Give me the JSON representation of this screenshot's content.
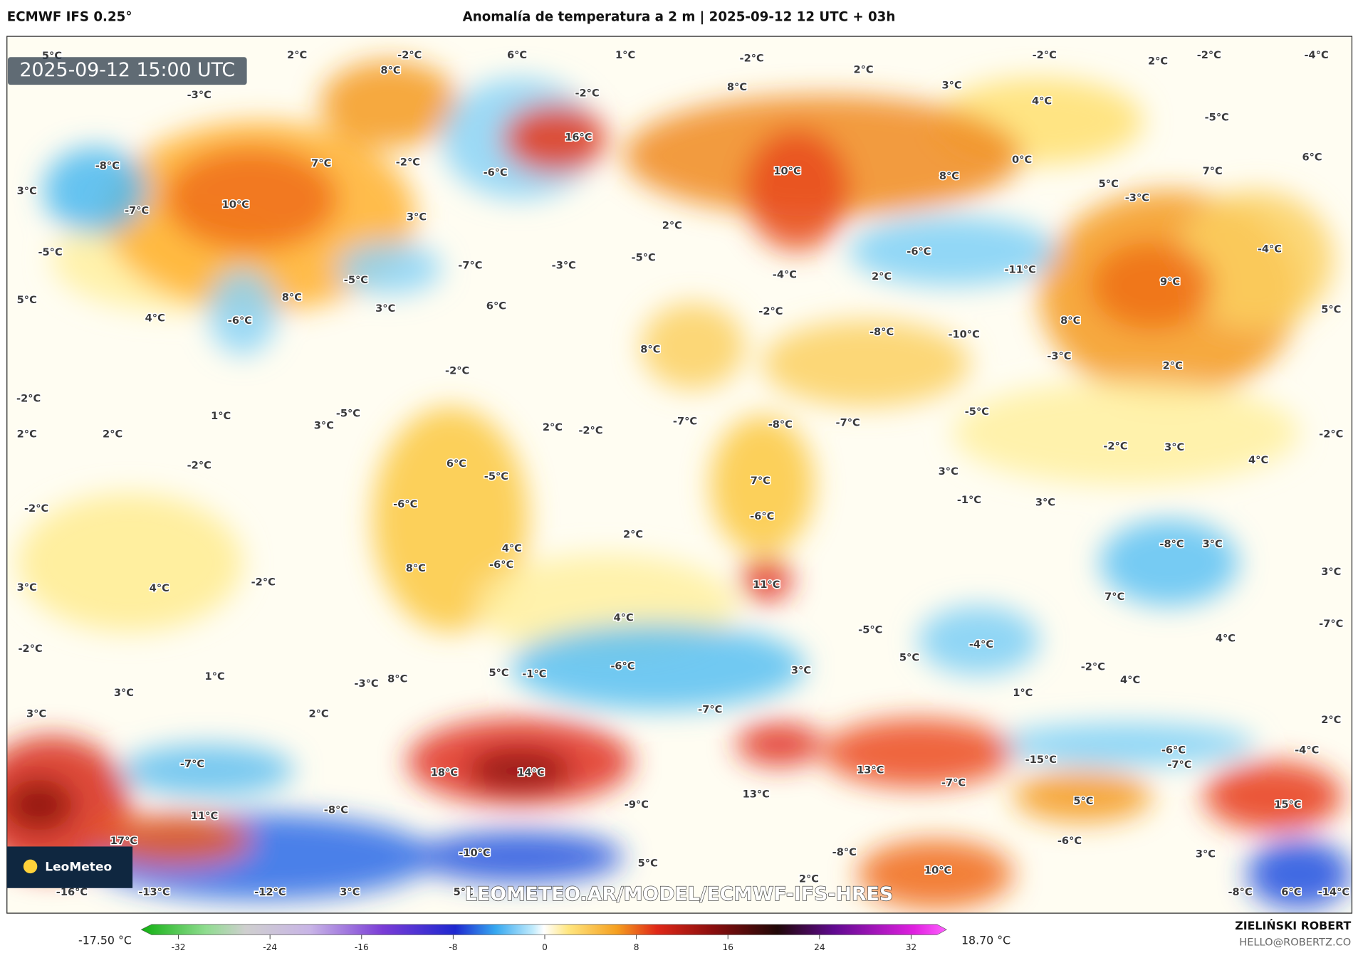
{
  "header": {
    "model": "ECMWF IFS 0.25°",
    "title": "Anomalía de temperatura a 2 m | 2025-09-12 12 UTC + 03h"
  },
  "map": {
    "timestamp": "2025-09-12 15:00 UTC",
    "logo": "LeoMeteo",
    "watermark": "LEOMETEO.AR/MODEL/ECMWF-IFS-HRES",
    "labels": [
      "5°C",
      "2°C",
      "-2°C",
      "6°C",
      "1°C",
      "-2°C",
      "2°C",
      "-2°C",
      "2°C",
      "-2°C",
      "-4°C",
      "8°C",
      "-3°C",
      "-2°C",
      "8°C",
      "3°C",
      "4°C",
      "-5°C",
      "16°C",
      "-8°C",
      "7°C",
      "-2°C",
      "-6°C",
      "10°C",
      "8°C",
      "0°C",
      "5°C",
      "7°C",
      "6°C",
      "3°C",
      "10°C",
      "-7°C",
      "3°C",
      "2°C",
      "-3°C",
      "-5°C",
      "-7°C",
      "-3°C",
      "-5°C",
      "-6°C",
      "-4°C",
      "-5°C",
      "-4°C",
      "2°C",
      "-11°C",
      "9°C",
      "5°C",
      "8°C",
      "4°C",
      "3°C",
      "6°C",
      "-2°C",
      "5°C",
      "-6°C",
      "-8°C",
      "-10°C",
      "8°C",
      "8°C",
      "-3°C",
      "2°C",
      "-2°C",
      "-2°C",
      "1°C",
      "3°C",
      "-5°C",
      "2°C",
      "-2°C",
      "-7°C",
      "-8°C",
      "-7°C",
      "-5°C",
      "2°C",
      "2°C",
      "-2°C",
      "3°C",
      "-2°C",
      "-2°C",
      "6°C",
      "-5°C",
      "3°C",
      "4°C",
      "7°C",
      "-6°C",
      "-2°C",
      "-1°C",
      "3°C",
      "-6°C",
      "2°C",
      "-8°C",
      "3°C",
      "4°C",
      "-6°C",
      "8°C",
      "3°C",
      "3°C",
      "4°C",
      "-2°C",
      "11°C",
      "7°C",
      "4°C",
      "-5°C",
      "-7°C",
      "-4°C",
      "4°C",
      "-2°C",
      "-6°C",
      "5°C",
      "3°C",
      "-2°C",
      "1°C",
      "5°C",
      "-1°C",
      "8°C",
      "-3°C",
      "4°C",
      "3°C",
      "1°C",
      "3°C",
      "2°C",
      "-7°C",
      "2°C",
      "-6°C",
      "-4°C",
      "-15°C",
      "-7°C",
      "-7°C",
      "18°C",
      "14°C",
      "13°C",
      "-7°C",
      "13°C",
      "-9°C",
      "5°C",
      "15°C",
      "-8°C",
      "11°C",
      "17°C",
      "-6°C",
      "-8°C",
      "-10°C",
      "3°C",
      "5°C",
      "10°C",
      "2°C",
      "-16°C",
      "-13°C",
      "-12°C",
      "3°C",
      "5°C",
      "-8°C",
      "6°C",
      "-14°C"
    ]
  },
  "colorbar": {
    "min_label": "-17.50 °C",
    "max_label": "18.70 °C",
    "ticks": [
      -32,
      -24,
      -16,
      -8,
      0,
      8,
      16,
      24,
      32
    ]
  },
  "footer": {
    "author": "ZIELIŃSKI ROBERT",
    "email": "HELLO@ROBERTZ.CO"
  }
}
